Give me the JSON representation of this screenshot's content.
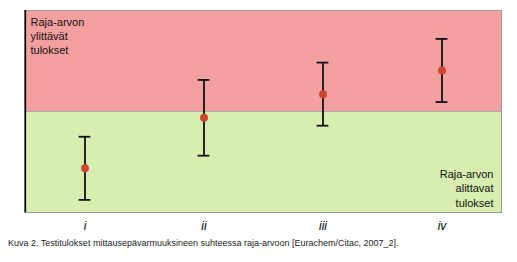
{
  "chart_data": {
    "type": "scatter",
    "caption": "Kuva 2. Testitulokset mittausepävarmuuksineen suhteessa raja-arvoon [Eurachem/Citac, 2007_2].",
    "categories": [
      "i",
      "ii",
      "iii",
      "iv"
    ],
    "values": [
      -1.8,
      -0.2,
      0.55,
      1.3
    ],
    "error_low": [
      1.0,
      1.2,
      1.0,
      1.0
    ],
    "error_high": [
      1.0,
      1.2,
      1.0,
      1.0
    ],
    "color": "#cc4433",
    "threshold": 0.0,
    "ylim": [
      -3.2,
      3.2
    ],
    "tick_labels": "x",
    "annotations": [
      {
        "text": "Raja-arvon\nylittävät\ntulokset",
        "color": "#f5a0a0"
      },
      {
        "text": "Raja-arvon\nalittavat\ntulokset",
        "color": "#d8edb0"
      }
    ]
  }
}
